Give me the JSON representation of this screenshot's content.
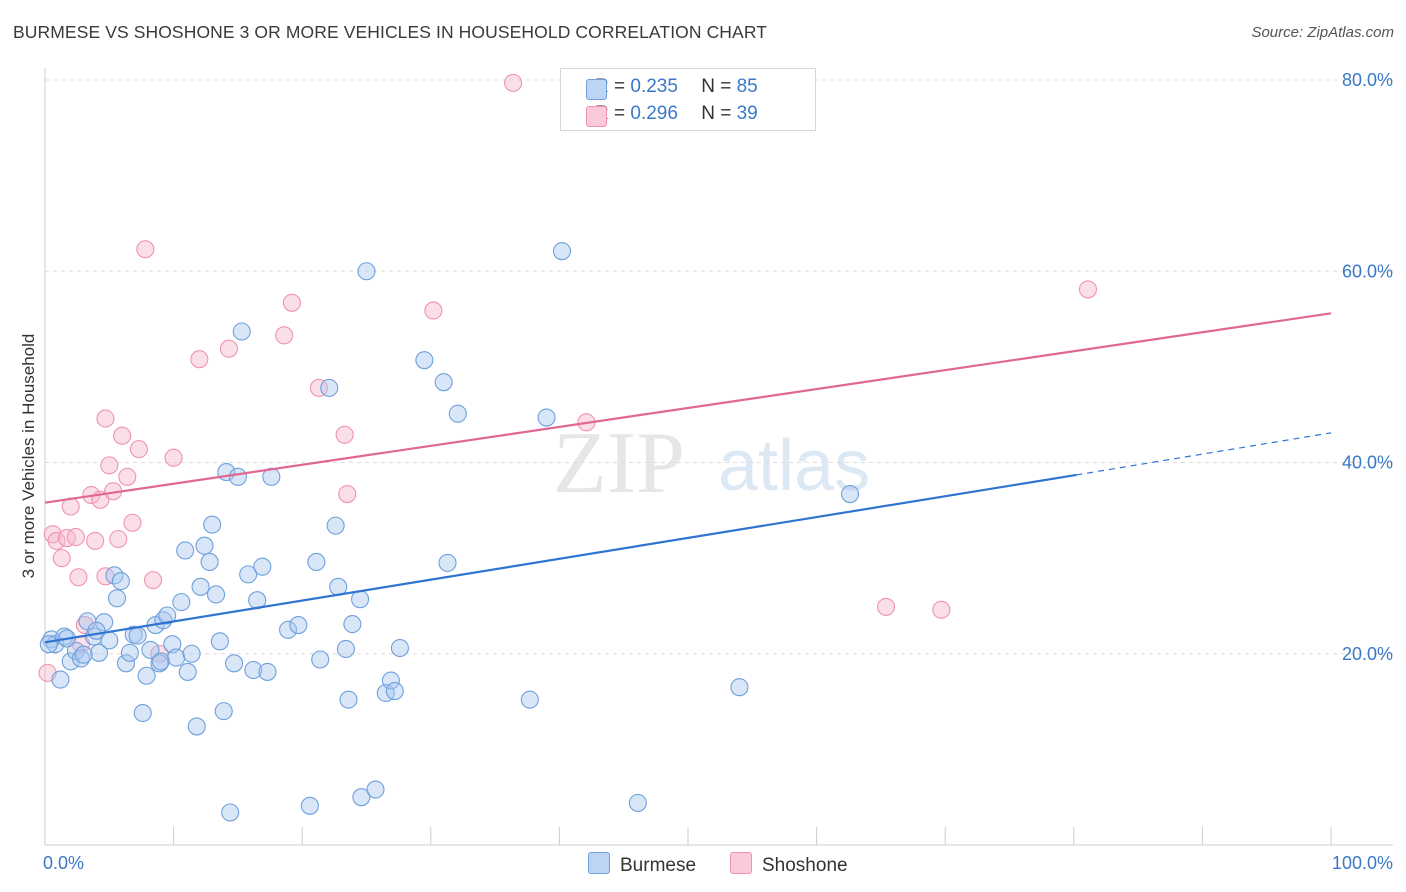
{
  "title": "BURMESE VS SHOSHONE 3 OR MORE VEHICLES IN HOUSEHOLD CORRELATION CHART",
  "source": "Source: ZipAtlas.com",
  "watermark": {
    "zip": "ZIP",
    "atlas": "atlas"
  },
  "legend": {
    "r_label": "R = ",
    "n_label": "N = ",
    "burmese": {
      "r": "0.235",
      "n": "85"
    },
    "shoshone": {
      "r": "0.296",
      "n": "39"
    }
  },
  "bottom_legend": {
    "burmese": "Burmese",
    "shoshone": "Shoshone"
  },
  "colors": {
    "burmese_fill": "#a8c8f0",
    "burmese_stroke": "#6fa0dc",
    "burmese_line": "#2f74d0",
    "shoshone_fill": "#f7b8cc",
    "shoshone_stroke": "#ef93b0",
    "shoshone_line": "#e06890",
    "axis_label": "#3a78c9",
    "grid": "#dddddd"
  },
  "chart_data": {
    "type": "scatter",
    "title": "BURMESE VS SHOSHONE 3 OR MORE VEHICLES IN HOUSEHOLD CORRELATION CHART",
    "xlabel": "",
    "ylabel": "3 or more Vehicles in Household",
    "xlim": [
      0,
      100
    ],
    "ylim": [
      0,
      80
    ],
    "x_tick_labels": [
      "0.0%",
      "100.0%"
    ],
    "y_ticks": [
      20,
      40,
      60,
      80
    ],
    "y_tick_labels": [
      "20.0%",
      "40.0%",
      "60.0%",
      "80.0%"
    ],
    "series": [
      {
        "name": "Burmese",
        "points": [
          [
            0.5,
            21.5
          ],
          [
            0.8,
            21.0
          ],
          [
            1.2,
            17.3
          ],
          [
            1.5,
            21.8
          ],
          [
            2.0,
            19.2
          ],
          [
            2.4,
            20.3
          ],
          [
            2.8,
            19.5
          ],
          [
            3.3,
            23.4
          ],
          [
            3.8,
            21.8
          ],
          [
            4.2,
            20.1
          ],
          [
            4.6,
            23.3
          ],
          [
            5.0,
            21.4
          ],
          [
            5.4,
            28.2
          ],
          [
            5.6,
            25.8
          ],
          [
            5.9,
            27.6
          ],
          [
            6.3,
            19.0
          ],
          [
            6.6,
            20.1
          ],
          [
            6.9,
            22.0
          ],
          [
            7.2,
            21.9
          ],
          [
            7.6,
            13.8
          ],
          [
            7.9,
            17.7
          ],
          [
            8.2,
            20.4
          ],
          [
            8.6,
            23.0
          ],
          [
            8.9,
            19.0
          ],
          [
            9.2,
            23.5
          ],
          [
            9.5,
            24.0
          ],
          [
            9.9,
            21.0
          ],
          [
            10.2,
            19.6
          ],
          [
            10.6,
            25.4
          ],
          [
            10.9,
            30.8
          ],
          [
            11.1,
            18.1
          ],
          [
            11.4,
            20.0
          ],
          [
            11.8,
            12.4
          ],
          [
            12.1,
            27.0
          ],
          [
            12.4,
            31.3
          ],
          [
            12.8,
            29.6
          ],
          [
            13.0,
            33.5
          ],
          [
            13.3,
            26.2
          ],
          [
            13.6,
            21.3
          ],
          [
            13.9,
            14.0
          ],
          [
            14.1,
            39.0
          ],
          [
            14.4,
            3.4
          ],
          [
            14.7,
            19.0
          ],
          [
            15.0,
            38.5
          ],
          [
            15.3,
            53.7
          ],
          [
            15.8,
            28.3
          ],
          [
            16.2,
            18.3
          ],
          [
            16.5,
            25.6
          ],
          [
            16.9,
            29.1
          ],
          [
            17.3,
            18.1
          ],
          [
            17.6,
            38.5
          ],
          [
            18.9,
            22.5
          ],
          [
            19.7,
            23.0
          ],
          [
            20.6,
            4.1
          ],
          [
            21.1,
            29.6
          ],
          [
            21.4,
            19.4
          ],
          [
            22.1,
            47.8
          ],
          [
            22.6,
            33.4
          ],
          [
            22.8,
            27.0
          ],
          [
            23.4,
            20.5
          ],
          [
            23.6,
            15.2
          ],
          [
            23.9,
            23.1
          ],
          [
            24.6,
            5.0
          ],
          [
            24.5,
            25.7
          ],
          [
            25.0,
            60.0
          ],
          [
            25.7,
            5.8
          ],
          [
            26.5,
            15.9
          ],
          [
            26.9,
            17.2
          ],
          [
            27.2,
            16.1
          ],
          [
            27.6,
            20.6
          ],
          [
            29.5,
            50.7
          ],
          [
            31.0,
            48.4
          ],
          [
            31.3,
            29.5
          ],
          [
            32.1,
            45.1
          ],
          [
            37.7,
            15.2
          ],
          [
            39.0,
            44.7
          ],
          [
            40.2,
            62.1
          ],
          [
            46.1,
            4.4
          ],
          [
            54.0,
            16.5
          ],
          [
            62.6,
            36.7
          ],
          [
            0.3,
            21.0
          ],
          [
            1.7,
            21.6
          ],
          [
            3.0,
            19.9
          ],
          [
            4.0,
            22.4
          ],
          [
            9.0,
            19.2
          ]
        ],
        "trend": {
          "x": [
            0,
            80.2
          ],
          "y": [
            21.2,
            38.7
          ],
          "dashed_extension": {
            "x": [
              80.2,
              100
            ],
            "y": [
              38.7,
              43.1
            ]
          }
        }
      },
      {
        "name": "Shoshone",
        "points": [
          [
            0.2,
            18.0
          ],
          [
            0.6,
            32.5
          ],
          [
            0.9,
            31.8
          ],
          [
            1.3,
            30.0
          ],
          [
            1.7,
            32.1
          ],
          [
            2.0,
            35.4
          ],
          [
            2.4,
            32.2
          ],
          [
            2.8,
            21.0
          ],
          [
            3.1,
            23.0
          ],
          [
            3.6,
            36.6
          ],
          [
            3.9,
            31.8
          ],
          [
            4.3,
            36.1
          ],
          [
            4.7,
            44.6
          ],
          [
            5.0,
            39.7
          ],
          [
            5.3,
            37.0
          ],
          [
            5.7,
            32.0
          ],
          [
            6.0,
            42.8
          ],
          [
            6.4,
            38.5
          ],
          [
            6.8,
            33.7
          ],
          [
            7.3,
            41.4
          ],
          [
            7.8,
            62.3
          ],
          [
            8.4,
            27.7
          ],
          [
            8.9,
            20.0
          ],
          [
            10.0,
            40.5
          ],
          [
            12.0,
            50.8
          ],
          [
            14.3,
            51.9
          ],
          [
            18.6,
            53.3
          ],
          [
            19.2,
            56.7
          ],
          [
            21.3,
            47.8
          ],
          [
            23.3,
            42.9
          ],
          [
            23.5,
            36.7
          ],
          [
            30.2,
            55.9
          ],
          [
            36.4,
            79.7
          ],
          [
            42.1,
            44.2
          ],
          [
            65.4,
            24.9
          ],
          [
            69.7,
            24.6
          ],
          [
            81.1,
            58.1
          ],
          [
            2.6,
            28.0
          ],
          [
            4.7,
            28.1
          ]
        ],
        "trend": {
          "x": [
            0,
            100
          ],
          "y": [
            35.8,
            55.6
          ]
        }
      }
    ]
  }
}
